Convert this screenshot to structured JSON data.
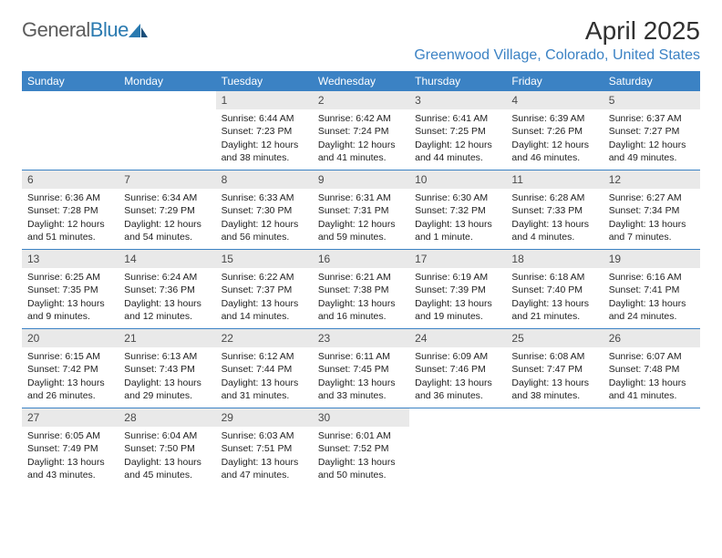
{
  "logo": {
    "word1": "General",
    "word2": "Blue"
  },
  "header": {
    "month_title": "April 2025",
    "location": "Greenwood Village, Colorado, United States"
  },
  "colors": {
    "header_band": "#3b82c4",
    "daynum_bg": "#e9e9e9",
    "location_text": "#3b82c4",
    "logo_gray": "#5c5c5c",
    "logo_blue": "#2a7ab0"
  },
  "dow": [
    "Sunday",
    "Monday",
    "Tuesday",
    "Wednesday",
    "Thursday",
    "Friday",
    "Saturday"
  ],
  "weeks": [
    [
      null,
      null,
      {
        "n": "1",
        "sr": "Sunrise: 6:44 AM",
        "ss": "Sunset: 7:23 PM",
        "dl": "Daylight: 12 hours and 38 minutes."
      },
      {
        "n": "2",
        "sr": "Sunrise: 6:42 AM",
        "ss": "Sunset: 7:24 PM",
        "dl": "Daylight: 12 hours and 41 minutes."
      },
      {
        "n": "3",
        "sr": "Sunrise: 6:41 AM",
        "ss": "Sunset: 7:25 PM",
        "dl": "Daylight: 12 hours and 44 minutes."
      },
      {
        "n": "4",
        "sr": "Sunrise: 6:39 AM",
        "ss": "Sunset: 7:26 PM",
        "dl": "Daylight: 12 hours and 46 minutes."
      },
      {
        "n": "5",
        "sr": "Sunrise: 6:37 AM",
        "ss": "Sunset: 7:27 PM",
        "dl": "Daylight: 12 hours and 49 minutes."
      }
    ],
    [
      {
        "n": "6",
        "sr": "Sunrise: 6:36 AM",
        "ss": "Sunset: 7:28 PM",
        "dl": "Daylight: 12 hours and 51 minutes."
      },
      {
        "n": "7",
        "sr": "Sunrise: 6:34 AM",
        "ss": "Sunset: 7:29 PM",
        "dl": "Daylight: 12 hours and 54 minutes."
      },
      {
        "n": "8",
        "sr": "Sunrise: 6:33 AM",
        "ss": "Sunset: 7:30 PM",
        "dl": "Daylight: 12 hours and 56 minutes."
      },
      {
        "n": "9",
        "sr": "Sunrise: 6:31 AM",
        "ss": "Sunset: 7:31 PM",
        "dl": "Daylight: 12 hours and 59 minutes."
      },
      {
        "n": "10",
        "sr": "Sunrise: 6:30 AM",
        "ss": "Sunset: 7:32 PM",
        "dl": "Daylight: 13 hours and 1 minute."
      },
      {
        "n": "11",
        "sr": "Sunrise: 6:28 AM",
        "ss": "Sunset: 7:33 PM",
        "dl": "Daylight: 13 hours and 4 minutes."
      },
      {
        "n": "12",
        "sr": "Sunrise: 6:27 AM",
        "ss": "Sunset: 7:34 PM",
        "dl": "Daylight: 13 hours and 7 minutes."
      }
    ],
    [
      {
        "n": "13",
        "sr": "Sunrise: 6:25 AM",
        "ss": "Sunset: 7:35 PM",
        "dl": "Daylight: 13 hours and 9 minutes."
      },
      {
        "n": "14",
        "sr": "Sunrise: 6:24 AM",
        "ss": "Sunset: 7:36 PM",
        "dl": "Daylight: 13 hours and 12 minutes."
      },
      {
        "n": "15",
        "sr": "Sunrise: 6:22 AM",
        "ss": "Sunset: 7:37 PM",
        "dl": "Daylight: 13 hours and 14 minutes."
      },
      {
        "n": "16",
        "sr": "Sunrise: 6:21 AM",
        "ss": "Sunset: 7:38 PM",
        "dl": "Daylight: 13 hours and 16 minutes."
      },
      {
        "n": "17",
        "sr": "Sunrise: 6:19 AM",
        "ss": "Sunset: 7:39 PM",
        "dl": "Daylight: 13 hours and 19 minutes."
      },
      {
        "n": "18",
        "sr": "Sunrise: 6:18 AM",
        "ss": "Sunset: 7:40 PM",
        "dl": "Daylight: 13 hours and 21 minutes."
      },
      {
        "n": "19",
        "sr": "Sunrise: 6:16 AM",
        "ss": "Sunset: 7:41 PM",
        "dl": "Daylight: 13 hours and 24 minutes."
      }
    ],
    [
      {
        "n": "20",
        "sr": "Sunrise: 6:15 AM",
        "ss": "Sunset: 7:42 PM",
        "dl": "Daylight: 13 hours and 26 minutes."
      },
      {
        "n": "21",
        "sr": "Sunrise: 6:13 AM",
        "ss": "Sunset: 7:43 PM",
        "dl": "Daylight: 13 hours and 29 minutes."
      },
      {
        "n": "22",
        "sr": "Sunrise: 6:12 AM",
        "ss": "Sunset: 7:44 PM",
        "dl": "Daylight: 13 hours and 31 minutes."
      },
      {
        "n": "23",
        "sr": "Sunrise: 6:11 AM",
        "ss": "Sunset: 7:45 PM",
        "dl": "Daylight: 13 hours and 33 minutes."
      },
      {
        "n": "24",
        "sr": "Sunrise: 6:09 AM",
        "ss": "Sunset: 7:46 PM",
        "dl": "Daylight: 13 hours and 36 minutes."
      },
      {
        "n": "25",
        "sr": "Sunrise: 6:08 AM",
        "ss": "Sunset: 7:47 PM",
        "dl": "Daylight: 13 hours and 38 minutes."
      },
      {
        "n": "26",
        "sr": "Sunrise: 6:07 AM",
        "ss": "Sunset: 7:48 PM",
        "dl": "Daylight: 13 hours and 41 minutes."
      }
    ],
    [
      {
        "n": "27",
        "sr": "Sunrise: 6:05 AM",
        "ss": "Sunset: 7:49 PM",
        "dl": "Daylight: 13 hours and 43 minutes."
      },
      {
        "n": "28",
        "sr": "Sunrise: 6:04 AM",
        "ss": "Sunset: 7:50 PM",
        "dl": "Daylight: 13 hours and 45 minutes."
      },
      {
        "n": "29",
        "sr": "Sunrise: 6:03 AM",
        "ss": "Sunset: 7:51 PM",
        "dl": "Daylight: 13 hours and 47 minutes."
      },
      {
        "n": "30",
        "sr": "Sunrise: 6:01 AM",
        "ss": "Sunset: 7:52 PM",
        "dl": "Daylight: 13 hours and 50 minutes."
      },
      null,
      null,
      null
    ]
  ]
}
